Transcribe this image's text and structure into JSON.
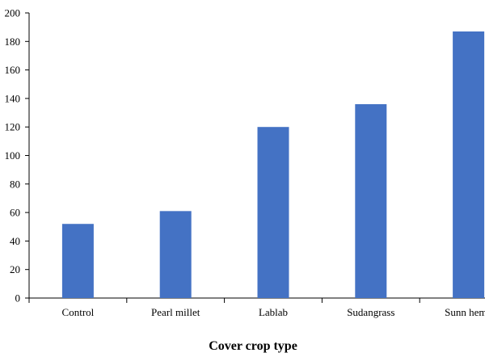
{
  "chart_data": {
    "type": "bar",
    "categories": [
      "Control",
      "Pearl millet",
      "Lablab",
      "Sudangrass",
      "Sunn hemp"
    ],
    "values": [
      52,
      61,
      120,
      136,
      187
    ],
    "title": "",
    "xlabel": "Cover crop type",
    "ylabel": "",
    "ylim": [
      0,
      200
    ],
    "yticks": [
      0,
      20,
      40,
      60,
      80,
      100,
      120,
      140,
      160,
      180,
      200
    ],
    "bar_color": "#4472C4",
    "grid": false,
    "legend": "none"
  }
}
